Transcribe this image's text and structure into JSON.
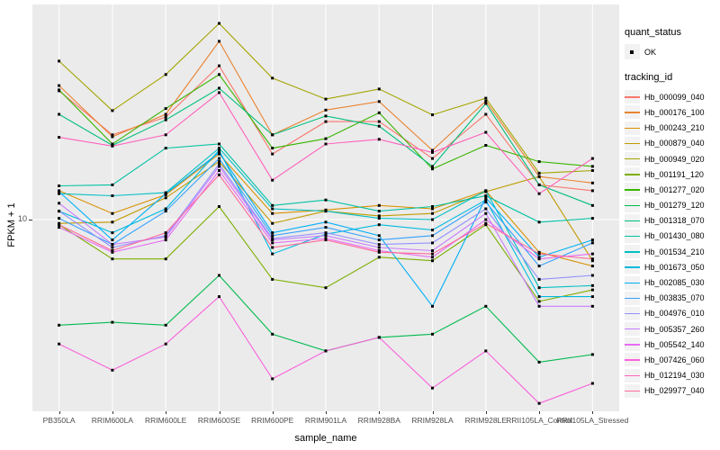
{
  "figure": {
    "panel_bg": "#EBEBEB",
    "grid_color": "#FFFFFF",
    "tick_color": "#333333",
    "tick_label_color": "#4D4D4D",
    "point_color": "#000000"
  },
  "axes": {
    "x_title": "sample_name",
    "y_title": "FPKM + 1",
    "y_tick_label": "10",
    "x_tick_labels": [
      "PB350LA",
      "RRIM600LA",
      "RRIM600LE",
      "RRIM600SE",
      "RRIM600PE",
      "RRIM901LA",
      "RRIM928BA",
      "RRIM928LA",
      "RRIM928LE",
      "RRII105LA_Control",
      "RRII105LA_Stressed"
    ]
  },
  "legend": {
    "quant_status_title": "quant_status",
    "quant_status_items": [
      {
        "label": "OK",
        "marker": "black-point"
      }
    ],
    "tracking_id_title": "tracking_id"
  },
  "chart_data": {
    "type": "line",
    "title": "",
    "xlabel": "sample_name",
    "ylabel": "FPKM + 1",
    "y_scale": "log10",
    "y_axis_breaks": [
      10
    ],
    "grid": "major-only",
    "legend_position": "right",
    "point_marker": "small black square on every data point",
    "categories": [
      "PB350LA",
      "RRIM600LA",
      "RRIM600LE",
      "RRIM600SE",
      "RRIM600PE",
      "RRIM901LA",
      "RRIM928BA",
      "RRIM928LA",
      "RRIM928LE",
      "RRII105LA_Control",
      "RRII105LA_Stressed"
    ],
    "series": [
      {
        "name": "Hb_000099_040",
        "color": "#F8766D",
        "values": [
          28.0,
          19.7,
          22.7,
          34.2,
          16.9,
          21.9,
          21.9,
          16.3,
          23.2,
          13.2,
          12.6
        ]
      },
      {
        "name": "Hb_000176_100",
        "color": "#EA8331",
        "values": [
          29.2,
          19.4,
          23.2,
          41.6,
          19.7,
          24.0,
          25.7,
          17.4,
          25.8,
          14.1,
          13.4
        ]
      },
      {
        "name": "Hb_000243_210",
        "color": "#D89000",
        "values": [
          12.6,
          10.5,
          12.2,
          16.9,
          10.5,
          10.8,
          11.2,
          10.9,
          12.6,
          7.7,
          6.9
        ]
      },
      {
        "name": "Hb_000879_040",
        "color": "#C09B00",
        "values": [
          9.7,
          9.8,
          11.9,
          15.9,
          9.7,
          10.7,
          10.3,
          10.5,
          12.5,
          14.1,
          7.2
        ]
      },
      {
        "name": "Hb_000949_020",
        "color": "#A3A500",
        "values": [
          35.5,
          23.9,
          31.9,
          48.0,
          31.0,
          26.2,
          28.4,
          23.1,
          26.4,
          14.5,
          14.8
        ]
      },
      {
        "name": "Hb_001191_120",
        "color": "#7CAE00",
        "values": [
          9.6,
          7.3,
          7.3,
          11.1,
          6.2,
          5.8,
          7.4,
          7.2,
          9.6,
          5.2,
          5.7
        ]
      },
      {
        "name": "Hb_001277_020",
        "color": "#39B600",
        "values": [
          28.2,
          18.3,
          24.3,
          31.9,
          17.7,
          19.1,
          23.5,
          15.0,
          18.1,
          15.9,
          15.3
        ]
      },
      {
        "name": "Hb_001279_120",
        "color": "#00BB4E",
        "values": [
          4.3,
          4.4,
          4.3,
          6.4,
          4.0,
          3.5,
          3.9,
          4.0,
          5.0,
          3.2,
          3.4
        ]
      },
      {
        "name": "Hb_001318_070",
        "color": "#00BF7D",
        "values": [
          23.2,
          18.1,
          22.2,
          28.6,
          19.7,
          22.9,
          21.1,
          15.3,
          25.3,
          13.2,
          11.2
        ]
      },
      {
        "name": "Hb_001430_080",
        "color": "#00C1A3",
        "values": [
          13.1,
          13.2,
          17.7,
          18.3,
          11.2,
          11.7,
          10.7,
          11.1,
          12.1,
          9.8,
          10.1
        ]
      },
      {
        "name": "Hb_001534_210",
        "color": "#00BFC4",
        "values": [
          12.3,
          12.1,
          12.4,
          17.7,
          10.9,
          10.7,
          10.1,
          10.0,
          12.6,
          5.8,
          5.9
        ]
      },
      {
        "name": "Hb_001673_050",
        "color": "#00BAE0",
        "values": [
          10.7,
          9.0,
          10.9,
          17.4,
          7.6,
          8.9,
          9.6,
          9.2,
          11.7,
          5.4,
          5.4
        ]
      },
      {
        "name": "Hb_002085_030",
        "color": "#00B0F6",
        "values": [
          12.5,
          8.5,
          12.3,
          17.1,
          9.0,
          9.8,
          8.8,
          5.0,
          11.9,
          7.4,
          8.5
        ]
      },
      {
        "name": "Hb_003835_070",
        "color": "#35A2FF",
        "values": [
          10.1,
          8.2,
          10.7,
          16.3,
          8.8,
          9.4,
          8.5,
          8.8,
          11.5,
          6.9,
          8.3
        ]
      },
      {
        "name": "Hb_004976_010",
        "color": "#9590FF",
        "values": [
          10.7,
          8.0,
          8.8,
          15.6,
          8.6,
          9.0,
          8.2,
          8.3,
          10.9,
          6.2,
          6.4
        ]
      },
      {
        "name": "Hb_005357_260",
        "color": "#C77CFF",
        "values": [
          11.4,
          8.2,
          8.7,
          15.3,
          8.5,
          8.8,
          8.0,
          7.8,
          10.5,
          5.0,
          5.0
        ]
      },
      {
        "name": "Hb_005542_140",
        "color": "#E76BF3",
        "values": [
          9.4,
          7.7,
          8.5,
          14.8,
          8.3,
          8.6,
          7.8,
          7.4,
          10.0,
          7.3,
          7.6
        ]
      },
      {
        "name": "Hb_007426_060",
        "color": "#FA62DB",
        "values": [
          3.7,
          3.0,
          3.7,
          5.4,
          2.8,
          3.5,
          3.9,
          2.6,
          3.5,
          2.3,
          2.7
        ]
      },
      {
        "name": "Hb_012194_030",
        "color": "#FF62BC",
        "values": [
          19.3,
          18.0,
          19.7,
          27.6,
          13.7,
          18.3,
          19.0,
          17.1,
          20.1,
          12.3,
          16.3
        ]
      },
      {
        "name": "Hb_029977_040",
        "color": "#FF6A98",
        "values": [
          9.6,
          7.8,
          9.0,
          14.3,
          8.0,
          8.5,
          7.7,
          7.6,
          9.7,
          7.6,
          7.3
        ]
      }
    ]
  }
}
